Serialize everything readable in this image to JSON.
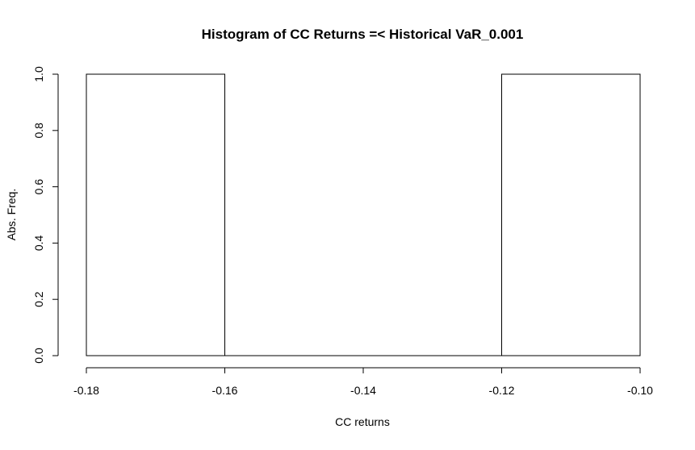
{
  "chart_data": {
    "type": "bar",
    "title": "Histogram of CC Returns =< Historical VaR_0.001",
    "xlabel": "CC returns",
    "ylabel": "Abs. Freq.",
    "xlim": [
      -0.18,
      -0.1
    ],
    "ylim": [
      0,
      1
    ],
    "x_ticks": [
      "-0.18",
      "-0.16",
      "-0.14",
      "-0.12",
      "-0.10"
    ],
    "y_ticks": [
      "0.0",
      "0.2",
      "0.4",
      "0.6",
      "0.8",
      "1.0"
    ],
    "bins": [
      {
        "start": -0.18,
        "end": -0.16,
        "value": 1
      },
      {
        "start": -0.16,
        "end": -0.14,
        "value": 0
      },
      {
        "start": -0.14,
        "end": -0.12,
        "value": 0
      },
      {
        "start": -0.12,
        "end": -0.1,
        "value": 1
      }
    ],
    "grid": false,
    "bar_fill": "#ffffff",
    "bar_stroke": "#000000"
  }
}
